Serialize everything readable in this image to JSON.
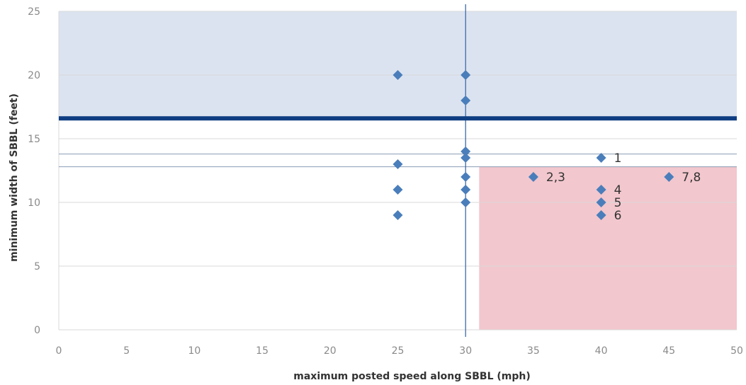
{
  "chart_data": {
    "type": "scatter",
    "xlabel": "maximum posted speed along SBBL (mph)",
    "ylabel": "minimum width of SBBL (feet)",
    "xlim": [
      0,
      50
    ],
    "ylim": [
      0,
      25
    ],
    "x_ticks": [
      "0",
      "5",
      "10",
      "15",
      "20",
      "25",
      "30",
      "35",
      "40",
      "45",
      "50"
    ],
    "y_ticks": [
      "0",
      "5",
      "10",
      "15",
      "20",
      "25"
    ],
    "grid": "horizontal gridlines only",
    "points": [
      {
        "x": 25,
        "y": 20
      },
      {
        "x": 25,
        "y": 13
      },
      {
        "x": 25,
        "y": 11
      },
      {
        "x": 25,
        "y": 9
      },
      {
        "x": 30,
        "y": 20
      },
      {
        "x": 30,
        "y": 18
      },
      {
        "x": 30,
        "y": 14
      },
      {
        "x": 30,
        "y": 13.5
      },
      {
        "x": 30,
        "y": 12
      },
      {
        "x": 30,
        "y": 11
      },
      {
        "x": 30,
        "y": 10
      },
      {
        "x": 35,
        "y": 12,
        "label": "2,3"
      },
      {
        "x": 40,
        "y": 13.5,
        "label": "1"
      },
      {
        "x": 40,
        "y": 11,
        "label": "4"
      },
      {
        "x": 40,
        "y": 10,
        "label": "5"
      },
      {
        "x": 40,
        "y": 9,
        "label": "6"
      },
      {
        "x": 45,
        "y": 12,
        "label": "7,8"
      }
    ],
    "reference_lines": {
      "horizontal_thick": 16.6,
      "horizontal_thin": [
        13.8,
        12.8
      ],
      "vertical": 30
    },
    "shaded_regions": [
      {
        "name": "upper-band",
        "x": [
          0,
          50
        ],
        "y": [
          16.6,
          25
        ],
        "color": "#dce3f0"
      },
      {
        "name": "lower-right-band",
        "x": [
          31,
          50
        ],
        "y": [
          0,
          12.8
        ],
        "color": "#f2c7cd"
      }
    ],
    "colors": {
      "marker": "#4a7ebb",
      "thick_line": "#0e3d82",
      "thin_line": "#2e5fa3",
      "grid": "#d9d9d9"
    }
  }
}
